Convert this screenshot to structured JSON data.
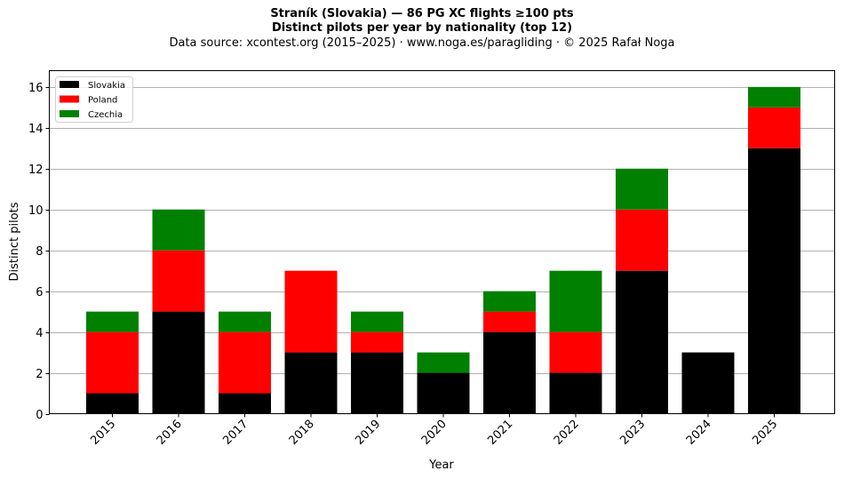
{
  "header": {
    "title_line1": "Straník (Slovakia)  —  86 PG XC flights ≥100 pts",
    "title_line2": "Distinct pilots per year by nationality (top 12)",
    "subtitle": "Data source: xcontest.org (2015–2025)  ·  www.noga.es/paragliding  ·  © 2025 Rafał Noga"
  },
  "chart_data": {
    "type": "bar",
    "stacked": true,
    "xlabel": "Year",
    "ylabel": "Distinct pilots",
    "ylim": [
      0,
      16.8
    ],
    "yticks": [
      0,
      2,
      4,
      6,
      8,
      10,
      12,
      14,
      16
    ],
    "grid": "horizontal",
    "legend_position": "top-left",
    "categories": [
      "2015",
      "2016",
      "2017",
      "2018",
      "2019",
      "2020",
      "2021",
      "2022",
      "2023",
      "2024",
      "2025"
    ],
    "series": [
      {
        "name": "Slovakia",
        "color": "#000000",
        "values": [
          1,
          5,
          1,
          3,
          3,
          2,
          4,
          2,
          7,
          3,
          13
        ]
      },
      {
        "name": "Poland",
        "color": "#ff0000",
        "values": [
          3,
          3,
          3,
          4,
          1,
          0,
          1,
          2,
          3,
          0,
          2
        ]
      },
      {
        "name": "Czechia",
        "color": "#008000",
        "values": [
          1,
          2,
          1,
          0,
          1,
          1,
          1,
          3,
          2,
          0,
          1
        ]
      }
    ]
  }
}
